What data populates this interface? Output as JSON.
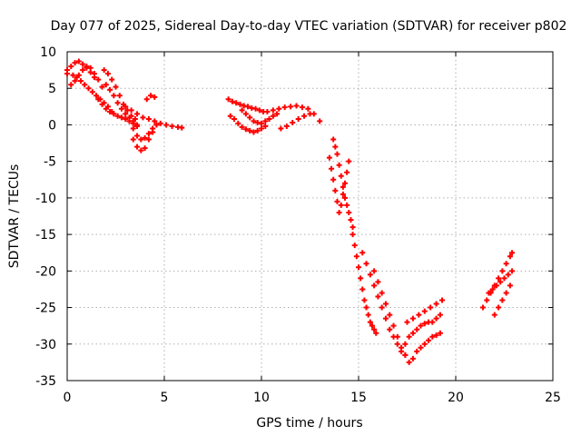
{
  "chart_data": {
    "type": "scatter",
    "title": "Day 077 of 2025, Sidereal Day-to-day VTEC variation (SDTVAR) for receiver p802",
    "xlabel": "GPS time / hours",
    "ylabel": "SDTVAR / TECUs",
    "xlim": [
      0,
      25
    ],
    "ylim": [
      -35,
      10
    ],
    "xticks": [
      0,
      5,
      10,
      15,
      20,
      25
    ],
    "yticks": [
      10,
      5,
      0,
      -5,
      -10,
      -15,
      -20,
      -25,
      -30,
      -35
    ],
    "grid": true,
    "marker": "+",
    "series_color": "#ff0000",
    "series": [
      {
        "name": "SDTVAR",
        "x": [
          0.0,
          0.2,
          0.4,
          0.6,
          0.8,
          1.0,
          1.2,
          1.4,
          0.2,
          0.4,
          0.6,
          0.8,
          1.0,
          1.2,
          1.4,
          1.6,
          1.8,
          0.0,
          0.3,
          0.5,
          0.7,
          0.9,
          1.1,
          1.3,
          1.5,
          1.7,
          1.9,
          2.1,
          2.3,
          1.9,
          2.1,
          2.3,
          2.5,
          2.7,
          2.9,
          3.1,
          3.3,
          3.5,
          1.6,
          1.8,
          2.0,
          2.2,
          2.4,
          2.6,
          2.8,
          3.0,
          3.2,
          3.4,
          3.6,
          2.0,
          2.2,
          2.4,
          2.6,
          2.8,
          3.0,
          3.2,
          3.4,
          3.6,
          3.2,
          3.4,
          3.6,
          3.8,
          4.0,
          4.2,
          4.4,
          4.6,
          3.4,
          3.6,
          3.8,
          4.0,
          4.2,
          4.4,
          3.0,
          3.3,
          3.6,
          3.9,
          4.2,
          4.5,
          4.8,
          5.1,
          5.4,
          5.7,
          5.9,
          4.1,
          4.3,
          4.5,
          8.3,
          8.5,
          8.7,
          8.9,
          9.1,
          9.3,
          9.5,
          9.7,
          9.9,
          10.1,
          8.4,
          8.6,
          8.8,
          9.0,
          9.2,
          9.4,
          9.6,
          9.8,
          10.0,
          10.2,
          9.0,
          9.2,
          9.4,
          9.6,
          9.8,
          10.0,
          10.2,
          10.4,
          10.6,
          10.8,
          10.3,
          10.6,
          10.9,
          11.2,
          11.5,
          11.8,
          12.1,
          12.4,
          12.7,
          13.0,
          11.0,
          11.3,
          11.6,
          11.9,
          12.2,
          12.5,
          13.5,
          13.6,
          13.7,
          13.8,
          13.9,
          14.0,
          14.1,
          14.2,
          14.3,
          14.4,
          14.5,
          13.7,
          13.8,
          13.9,
          14.0,
          14.1,
          14.2,
          14.3,
          14.4,
          14.5,
          14.6,
          14.7,
          14.7,
          14.8,
          14.9,
          15.0,
          15.1,
          15.2,
          15.3,
          15.4,
          15.5,
          15.6,
          15.7,
          15.8,
          15.9,
          15.2,
          15.4,
          15.6,
          15.8,
          16.0,
          16.2,
          16.4,
          16.6,
          16.8,
          17.0,
          17.2,
          17.4,
          15.8,
          16.0,
          16.2,
          16.4,
          16.6,
          16.8,
          17.0,
          17.2,
          17.4,
          17.6,
          17.8,
          17.4,
          17.6,
          17.8,
          18.0,
          18.2,
          18.4,
          18.6,
          18.8,
          19.0,
          19.2,
          18.0,
          18.2,
          18.4,
          18.6,
          18.8,
          19.0,
          19.2,
          17.5,
          17.8,
          18.1,
          18.4,
          18.7,
          19.0,
          19.3,
          21.4,
          21.6,
          21.8,
          22.0,
          22.2,
          22.4,
          22.6,
          22.8,
          22.9,
          21.7,
          21.9,
          22.1,
          22.3,
          22.5,
          22.7,
          22.9,
          22.0,
          22.2,
          22.4,
          22.6,
          22.8
        ],
        "y": [
          7.5,
          8.0,
          8.5,
          8.7,
          8.3,
          7.8,
          7.2,
          6.5,
          5.5,
          6.0,
          6.8,
          7.5,
          8.0,
          7.8,
          7.0,
          6.2,
          5.2,
          7.0,
          6.8,
          6.5,
          6.0,
          5.5,
          5.0,
          4.5,
          4.0,
          3.5,
          3.0,
          2.5,
          1.8,
          7.5,
          7.0,
          6.2,
          5.2,
          4.0,
          2.8,
          2.0,
          1.2,
          0.8,
          3.5,
          2.8,
          2.2,
          1.8,
          1.5,
          1.2,
          1.0,
          0.8,
          0.5,
          0.2,
          -0.2,
          5.5,
          4.8,
          4.0,
          3.0,
          2.2,
          1.5,
          1.0,
          0.5,
          0.0,
          0.5,
          -0.5,
          -1.5,
          -2.0,
          -1.8,
          -1.2,
          -0.5,
          0.0,
          -2.0,
          -3.0,
          -3.5,
          -3.2,
          -2.0,
          -1.0,
          2.5,
          2.0,
          1.5,
          1.0,
          0.8,
          0.5,
          0.2,
          0.0,
          -0.2,
          -0.3,
          -0.4,
          3.5,
          4.0,
          3.8,
          3.5,
          3.2,
          3.0,
          2.8,
          2.6,
          2.5,
          2.3,
          2.2,
          2.0,
          1.8,
          1.2,
          0.8,
          0.2,
          -0.3,
          -0.6,
          -0.8,
          -1.0,
          -0.8,
          -0.5,
          -0.2,
          2.0,
          1.5,
          1.0,
          0.5,
          0.3,
          0.2,
          0.5,
          0.8,
          1.2,
          1.5,
          1.8,
          2.0,
          2.2,
          2.4,
          2.5,
          2.6,
          2.4,
          2.2,
          1.5,
          0.5,
          -0.5,
          -0.2,
          0.3,
          0.8,
          1.2,
          1.5,
          -4.5,
          -6.0,
          -7.5,
          -9.0,
          -10.5,
          -12.0,
          -11.0,
          -9.5,
          -8.0,
          -6.5,
          -5.0,
          -2.0,
          -3.0,
          -4.0,
          -5.5,
          -7.0,
          -8.5,
          -10.0,
          -11.0,
          -12.0,
          -13.0,
          -14.0,
          -15.0,
          -16.5,
          -18.0,
          -19.5,
          -21.0,
          -22.5,
          -24.0,
          -25.0,
          -26.0,
          -27.0,
          -27.5,
          -28.0,
          -28.5,
          -17.5,
          -19.0,
          -20.5,
          -22.0,
          -23.5,
          -25.0,
          -26.5,
          -28.0,
          -29.0,
          -30.0,
          -31.0,
          -31.5,
          -20.0,
          -21.5,
          -23.0,
          -24.5,
          -26.0,
          -27.5,
          -29.0,
          -30.5,
          -31.5,
          -32.5,
          -32.0,
          -30.0,
          -29.0,
          -28.5,
          -28.0,
          -27.5,
          -27.2,
          -27.0,
          -27.0,
          -26.5,
          -26.0,
          -31.0,
          -30.5,
          -30.0,
          -29.5,
          -29.0,
          -28.8,
          -28.5,
          -27.0,
          -26.5,
          -26.0,
          -25.5,
          -25.0,
          -24.5,
          -24.0,
          -25.0,
          -24.0,
          -23.0,
          -22.0,
          -21.0,
          -20.0,
          -19.0,
          -18.0,
          -17.5,
          -23.0,
          -22.5,
          -22.0,
          -21.5,
          -21.0,
          -20.5,
          -20.0,
          -26.0,
          -25.0,
          -24.0,
          -23.0,
          -22.0
        ]
      }
    ]
  }
}
